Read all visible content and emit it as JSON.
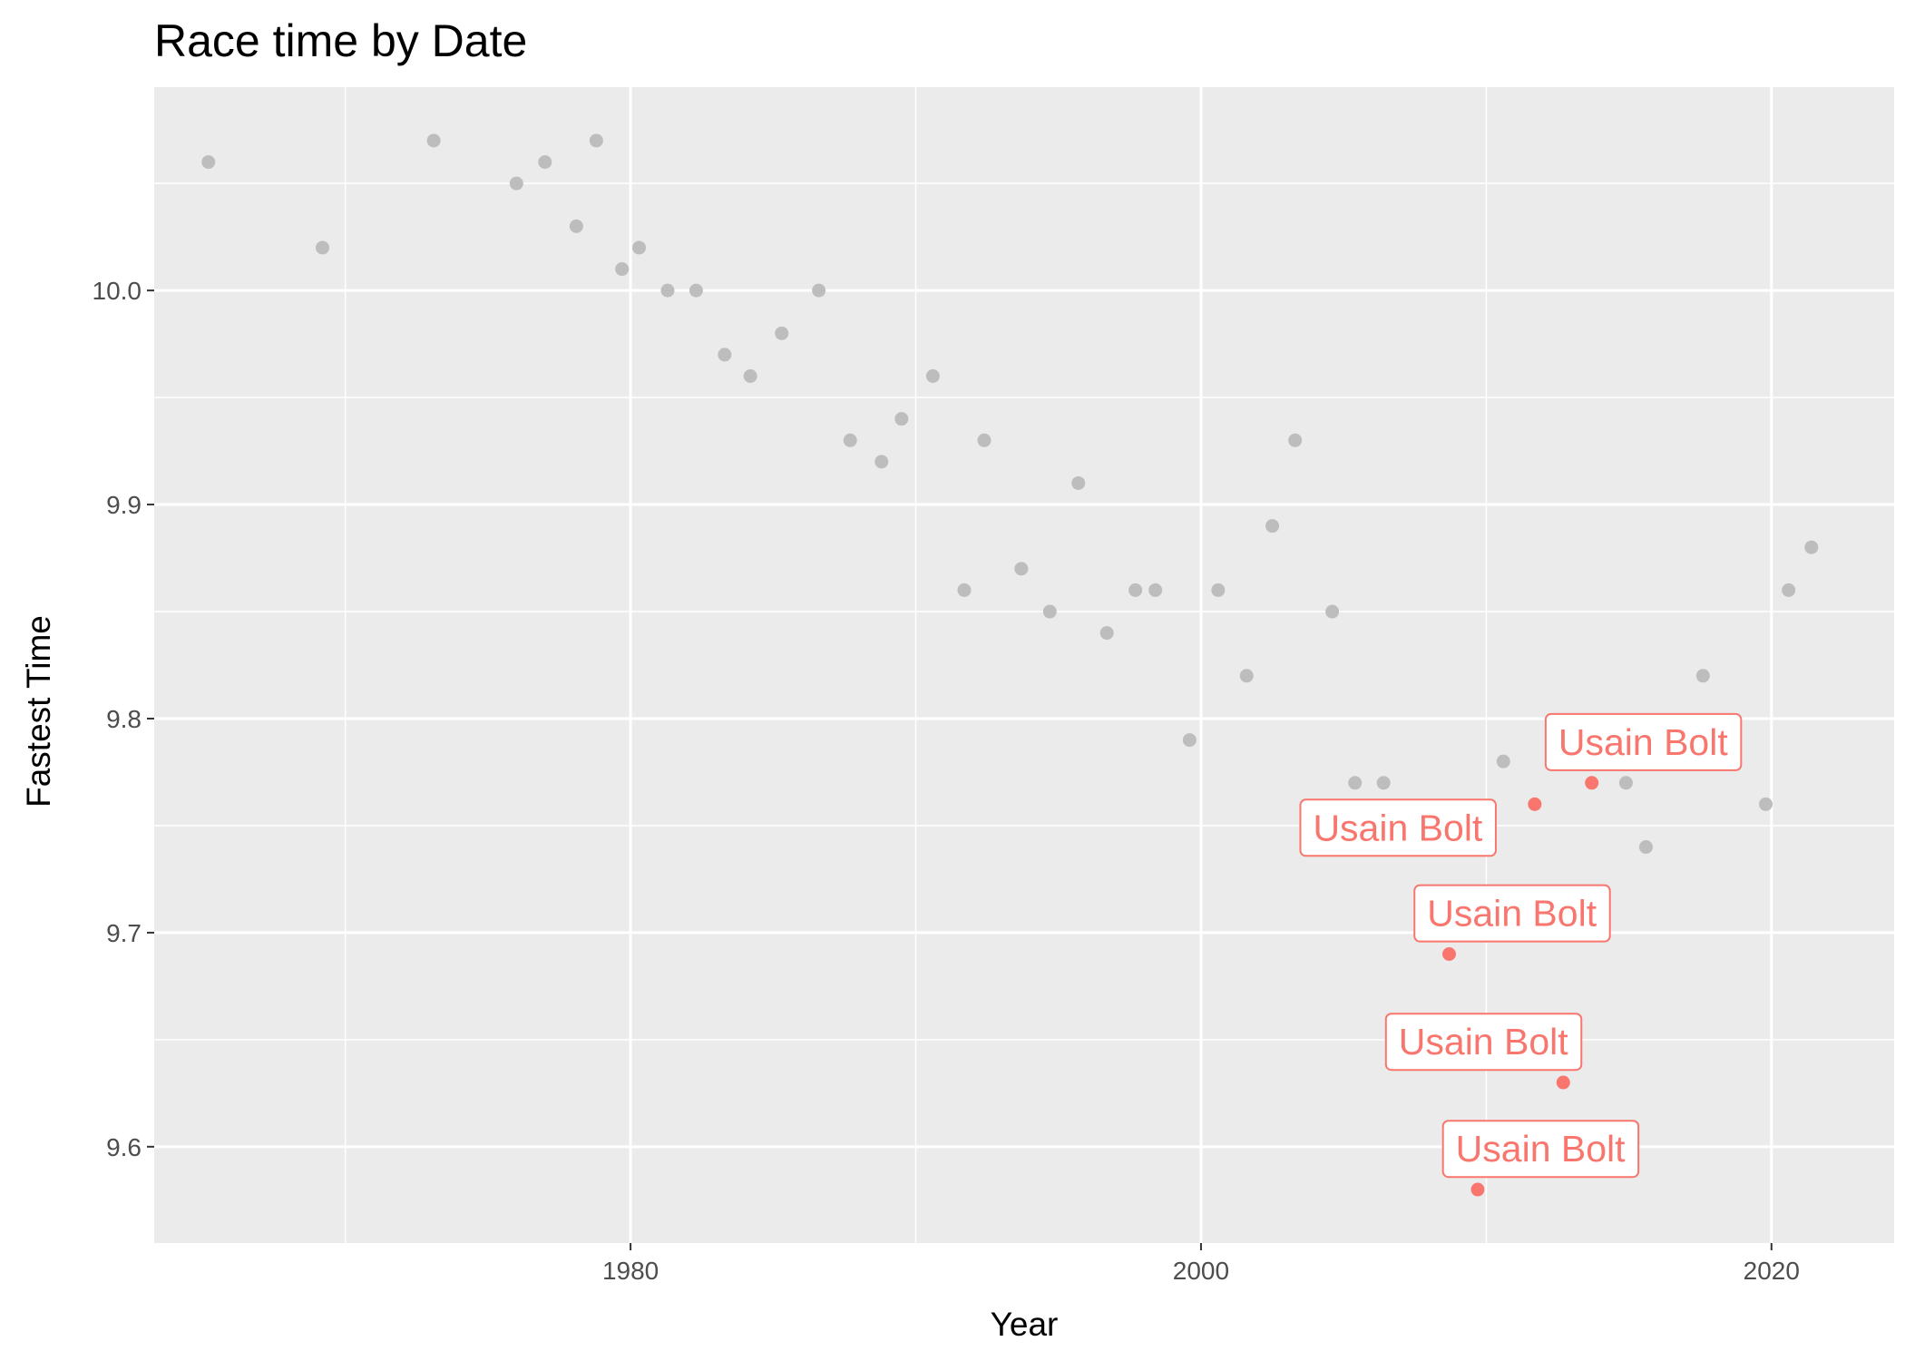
{
  "chart_data": {
    "type": "scatter",
    "title": "Race time by Date",
    "xlabel": "Year",
    "ylabel": "Fastest Time",
    "xlim": [
      1963.3,
      2024.3
    ],
    "ylim": [
      9.555,
      10.095
    ],
    "x_ticks": [
      1980,
      2000,
      2020
    ],
    "x_tick_labels": [
      "1980",
      "2000",
      "2020"
    ],
    "x_minor_ticks": [
      1970,
      1990,
      2010
    ],
    "y_ticks": [
      9.6,
      9.7,
      9.8,
      9.9,
      10.0
    ],
    "y_tick_labels": [
      "9.6",
      "9.7",
      "9.8",
      "9.9",
      "10.0"
    ],
    "y_minor_ticks": [
      9.65,
      9.75,
      9.85,
      9.95,
      10.05
    ],
    "grid": true,
    "panel_color": "#ebebeb",
    "grid_color": "#ffffff",
    "colors": {
      "other": "#bdbdbd",
      "highlight": "#f8766d"
    },
    "legend": "none",
    "series": [
      {
        "group": "other",
        "x": [
          1965.2,
          1969.2,
          1973.1,
          1976.0,
          1977.0,
          1978.1,
          1978.8,
          1979.7,
          1980.3,
          1981.3,
          1982.3,
          1983.3,
          1984.2,
          1985.3,
          1986.6,
          1987.7,
          1988.8,
          1989.5,
          1990.6,
          1991.7,
          1992.4,
          1993.7,
          1994.7,
          1995.7,
          1996.7,
          1997.7,
          1998.4,
          1999.6,
          2000.6,
          2001.6,
          2002.5,
          2003.3,
          2004.6,
          2005.4,
          2006.4,
          2010.6,
          2014.9,
          2015.6,
          2017.6,
          2019.8,
          2020.6,
          2021.4
        ],
        "y": [
          10.06,
          10.02,
          10.07,
          10.05,
          10.06,
          10.03,
          10.07,
          10.01,
          10.02,
          10.0,
          10.0,
          9.97,
          9.96,
          9.98,
          10.0,
          9.93,
          9.92,
          9.94,
          9.96,
          9.86,
          9.93,
          9.87,
          9.85,
          9.91,
          9.84,
          9.86,
          9.86,
          9.79,
          9.86,
          9.82,
          9.89,
          9.93,
          9.85,
          9.77,
          9.77,
          9.78,
          9.77,
          9.74,
          9.82,
          9.76,
          9.86,
          9.88
        ]
      },
      {
        "group": "highlight",
        "x": [
          2008.7,
          2009.7,
          2011.7,
          2012.7,
          2013.7
        ],
        "y": [
          9.69,
          9.58,
          9.76,
          9.63,
          9.77
        ]
      }
    ],
    "annotations": [
      {
        "text": "Usain Bolt",
        "x": 2006.9,
        "y": 9.749
      },
      {
        "text": "Usain Bolt",
        "x": 2010.9,
        "y": 9.709
      },
      {
        "text": "Usain Bolt",
        "x": 2009.9,
        "y": 9.649
      },
      {
        "text": "Usain Bolt",
        "x": 2011.9,
        "y": 9.599
      },
      {
        "text": "Usain Bolt",
        "x": 2015.5,
        "y": 9.789
      }
    ]
  }
}
